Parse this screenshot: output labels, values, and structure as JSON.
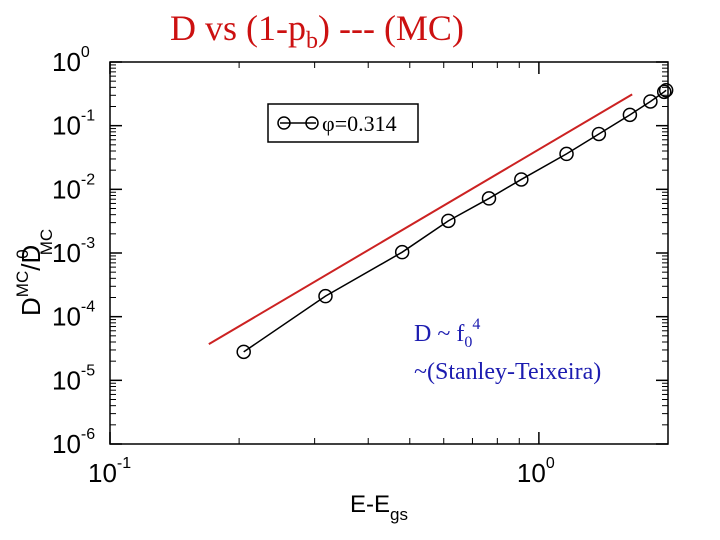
{
  "title": {
    "prefix": "D  vs (1-p",
    "sub": "b",
    "suffix": ")  --- (MC)"
  },
  "y_axis_label": {
    "base1": "D",
    "sup1": "MC",
    "slash": "/D",
    "sup2": "0",
    "sub2": "MC"
  },
  "x_axis_label": {
    "base": "E-E",
    "sub": "gs"
  },
  "legend": {
    "symbol": "φ",
    "value": "=0.314"
  },
  "annotation": {
    "line1_base": "D ~ f",
    "line1_sub": "0",
    "line1_sup": "4",
    "line2": "~(Stanley-Teixeira)"
  },
  "colors": {
    "data": "#000000",
    "fit": "#cc2222",
    "annotation": "#1c1cb0"
  },
  "chart_data": {
    "type": "line",
    "xscale": "log",
    "yscale": "log",
    "xlim": [
      0.1,
      2.0
    ],
    "ylim": [
      1e-06,
      1.0
    ],
    "x_ticks": [
      {
        "value": 0.1,
        "base": "10",
        "exp": "-1"
      },
      {
        "value": 1.0,
        "base": "10",
        "exp": "0"
      }
    ],
    "y_ticks": [
      {
        "value": 1e-06,
        "base": "10",
        "exp": "-6"
      },
      {
        "value": 1e-05,
        "base": "10",
        "exp": "-5"
      },
      {
        "value": 0.0001,
        "base": "10",
        "exp": "-4"
      },
      {
        "value": 0.001,
        "base": "10",
        "exp": "-3"
      },
      {
        "value": 0.01,
        "base": "10",
        "exp": "-2"
      },
      {
        "value": 0.1,
        "base": "10",
        "exp": "-1"
      },
      {
        "value": 1.0,
        "base": "10",
        "exp": "0"
      }
    ],
    "series": [
      {
        "name": "φ=0.314",
        "style": "line-open-circles",
        "x": [
          0.205,
          0.318,
          0.48,
          0.615,
          0.765,
          0.91,
          1.16,
          1.38,
          1.63,
          1.82,
          1.96,
          1.98
        ],
        "y": [
          2.8e-05,
          0.00021,
          0.00103,
          0.0032,
          0.0072,
          0.0143,
          0.036,
          0.074,
          0.148,
          0.24,
          0.34,
          0.36
        ]
      },
      {
        "name": "reference",
        "style": "line",
        "x": [
          0.17,
          1.65
        ],
        "y": [
          3.7e-05,
          0.31
        ]
      }
    ]
  }
}
